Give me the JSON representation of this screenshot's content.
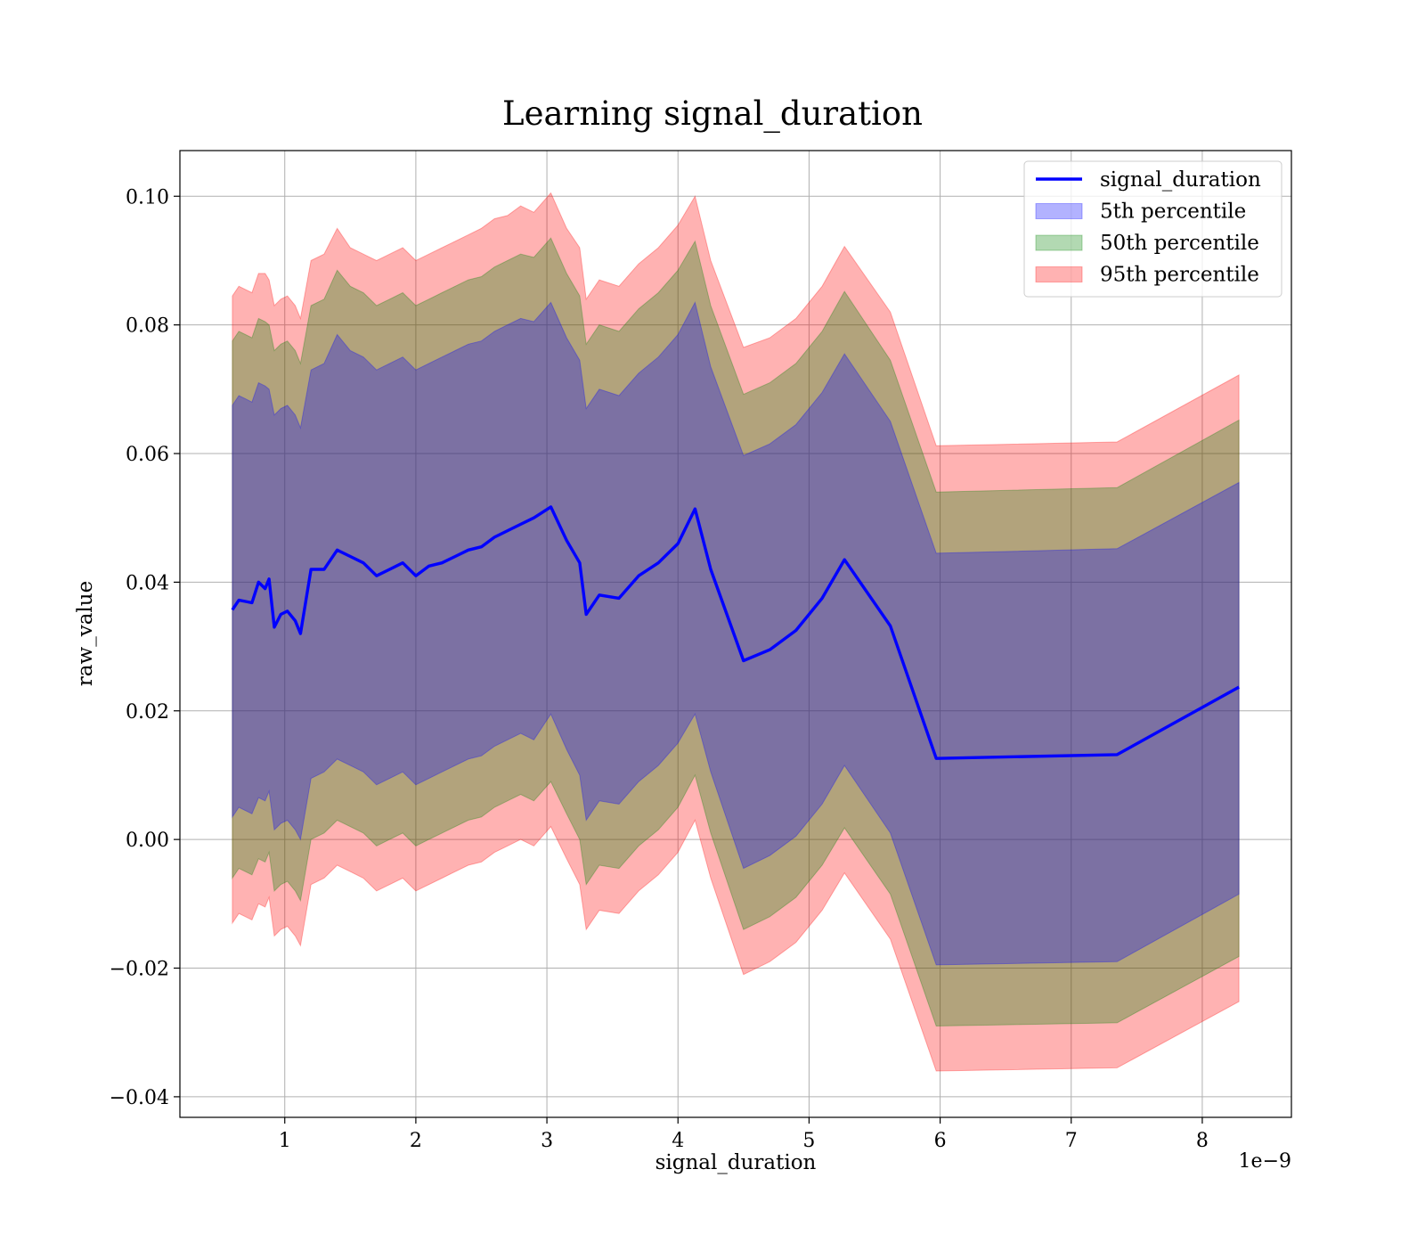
{
  "chart_data": {
    "type": "area",
    "title": "Learning signal_duration",
    "xlabel": "signal_duration",
    "ylabel": "raw_value",
    "x_scale_label": "1e−9",
    "xlim": [
      0.2,
      8.68
    ],
    "ylim": [
      -0.0432,
      0.1071
    ],
    "x_ticks": [
      1,
      2,
      3,
      4,
      5,
      6,
      7,
      8
    ],
    "x_tick_labels": [
      "1",
      "2",
      "3",
      "4",
      "5",
      "6",
      "7",
      "8"
    ],
    "y_ticks": [
      -0.04,
      -0.02,
      0.0,
      0.02,
      0.04,
      0.06,
      0.08,
      0.1
    ],
    "y_tick_labels": [
      "−0.04",
      "−0.02",
      "0.00",
      "0.02",
      "0.04",
      "0.06",
      "0.08",
      "0.10"
    ],
    "grid": true,
    "legend_position": "top-right",
    "legend": [
      {
        "label": "signal_duration",
        "kind": "line",
        "color": "#0000ff"
      },
      {
        "label": "5th percentile",
        "kind": "patch",
        "color": "#0000ff",
        "alpha": 0.3
      },
      {
        "label": "50th percentile",
        "kind": "patch",
        "color": "#008000",
        "alpha": 0.3
      },
      {
        "label": "95th percentile",
        "kind": "patch",
        "color": "#ff0000",
        "alpha": 0.3
      }
    ],
    "x": [
      0.6,
      0.65,
      0.7,
      0.75,
      0.8,
      0.85,
      0.88,
      0.92,
      0.97,
      1.02,
      1.08,
      1.12,
      1.2,
      1.3,
      1.4,
      1.5,
      1.6,
      1.7,
      1.8,
      1.9,
      2.0,
      2.1,
      2.2,
      2.3,
      2.4,
      2.5,
      2.6,
      2.7,
      2.8,
      2.9,
      3.03,
      3.15,
      3.25,
      3.3,
      3.4,
      3.55,
      3.7,
      3.85,
      4.0,
      4.13,
      4.25,
      4.5,
      4.7,
      4.9,
      5.1,
      5.27,
      5.62,
      5.97,
      7.35,
      8.28
    ],
    "series": [
      {
        "name": "signal_duration",
        "role": "line",
        "color": "#0000ff",
        "values": [
          0.0357,
          0.0372,
          0.037,
          0.0368,
          0.04,
          0.039,
          0.0405,
          0.033,
          0.035,
          0.0355,
          0.034,
          0.032,
          0.042,
          0.042,
          0.045,
          0.044,
          0.043,
          0.041,
          0.042,
          0.043,
          0.041,
          0.0425,
          0.043,
          0.044,
          0.045,
          0.0455,
          0.047,
          0.048,
          0.049,
          0.05,
          0.0517,
          0.0465,
          0.043,
          0.035,
          0.038,
          0.0375,
          0.041,
          0.043,
          0.046,
          0.0514,
          0.042,
          0.0278,
          0.0295,
          0.0325,
          0.0375,
          0.0435,
          0.0332,
          0.0126,
          0.0132,
          0.0237
        ]
      }
    ],
    "bands": [
      {
        "name": "95th percentile",
        "color": "#ff0000",
        "alpha": 0.3,
        "upper": [
          0.0845,
          0.086,
          0.0855,
          0.085,
          0.088,
          0.088,
          0.087,
          0.083,
          0.084,
          0.0845,
          0.083,
          0.081,
          0.09,
          0.091,
          0.095,
          0.092,
          0.091,
          0.09,
          0.091,
          0.092,
          0.09,
          0.091,
          0.092,
          0.093,
          0.094,
          0.095,
          0.0965,
          0.097,
          0.0985,
          0.0975,
          0.1005,
          0.095,
          0.092,
          0.084,
          0.087,
          0.086,
          0.0895,
          0.092,
          0.0955,
          0.1,
          0.09,
          0.0765,
          0.078,
          0.081,
          0.086,
          0.0922,
          0.082,
          0.0612,
          0.0618,
          0.0722
        ],
        "lower": [
          -0.013,
          -0.0115,
          -0.012,
          -0.0125,
          -0.01,
          -0.0105,
          -0.009,
          -0.015,
          -0.014,
          -0.0135,
          -0.015,
          -0.0165,
          -0.007,
          -0.006,
          -0.004,
          -0.005,
          -0.006,
          -0.008,
          -0.007,
          -0.006,
          -0.008,
          -0.007,
          -0.006,
          -0.005,
          -0.004,
          -0.0035,
          -0.002,
          -0.001,
          0.0,
          -0.001,
          0.002,
          -0.003,
          -0.007,
          -0.014,
          -0.011,
          -0.0115,
          -0.008,
          -0.0055,
          -0.002,
          0.003,
          -0.006,
          -0.021,
          -0.019,
          -0.016,
          -0.011,
          -0.0052,
          -0.0155,
          -0.036,
          -0.0355,
          -0.0252
        ]
      },
      {
        "name": "50th percentile",
        "color": "#008000",
        "alpha": 0.3,
        "upper": [
          0.0775,
          0.079,
          0.0785,
          0.078,
          0.081,
          0.0805,
          0.08,
          0.076,
          0.077,
          0.0775,
          0.076,
          0.074,
          0.083,
          0.084,
          0.0885,
          0.086,
          0.085,
          0.083,
          0.084,
          0.085,
          0.083,
          0.084,
          0.085,
          0.086,
          0.087,
          0.0875,
          0.089,
          0.09,
          0.091,
          0.0905,
          0.0935,
          0.088,
          0.0845,
          0.077,
          0.08,
          0.079,
          0.0825,
          0.085,
          0.0885,
          0.093,
          0.083,
          0.0692,
          0.071,
          0.074,
          0.079,
          0.0852,
          0.0745,
          0.054,
          0.0547,
          0.0652
        ],
        "lower": [
          -0.006,
          -0.0045,
          -0.005,
          -0.0055,
          -0.003,
          -0.0035,
          -0.002,
          -0.008,
          -0.007,
          -0.0065,
          -0.008,
          -0.0095,
          0.0,
          0.001,
          0.003,
          0.002,
          0.001,
          -0.001,
          0.0,
          0.001,
          -0.001,
          0.0,
          0.001,
          0.002,
          0.003,
          0.0035,
          0.005,
          0.006,
          0.007,
          0.006,
          0.009,
          0.004,
          0.0,
          -0.007,
          -0.004,
          -0.0045,
          -0.001,
          0.0015,
          0.005,
          0.01,
          0.001,
          -0.014,
          -0.012,
          -0.009,
          -0.004,
          0.0018,
          -0.0085,
          -0.029,
          -0.0285,
          -0.0182
        ]
      },
      {
        "name": "5th percentile",
        "color": "#0000ff",
        "alpha": 0.3,
        "upper": [
          0.0675,
          0.069,
          0.0685,
          0.068,
          0.071,
          0.0705,
          0.07,
          0.066,
          0.067,
          0.0675,
          0.066,
          0.064,
          0.073,
          0.074,
          0.0785,
          0.076,
          0.075,
          0.073,
          0.074,
          0.075,
          0.073,
          0.074,
          0.075,
          0.076,
          0.077,
          0.0775,
          0.079,
          0.08,
          0.081,
          0.0805,
          0.0835,
          0.078,
          0.0745,
          0.067,
          0.07,
          0.069,
          0.0725,
          0.075,
          0.0785,
          0.0835,
          0.0735,
          0.0597,
          0.0615,
          0.0645,
          0.0695,
          0.0755,
          0.065,
          0.0445,
          0.0452,
          0.0555
        ],
        "lower": [
          0.0035,
          0.005,
          0.0045,
          0.004,
          0.0065,
          0.006,
          0.0075,
          0.0015,
          0.0025,
          0.003,
          0.0015,
          0.0,
          0.0095,
          0.0105,
          0.0125,
          0.0115,
          0.0105,
          0.0085,
          0.0095,
          0.0105,
          0.0085,
          0.0095,
          0.0105,
          0.0115,
          0.0125,
          0.013,
          0.0145,
          0.0155,
          0.0165,
          0.0155,
          0.0195,
          0.014,
          0.01,
          0.003,
          0.006,
          0.0055,
          0.009,
          0.0115,
          0.015,
          0.0195,
          0.0105,
          -0.0045,
          -0.0025,
          0.0005,
          0.0055,
          0.0115,
          0.001,
          -0.0195,
          -0.019,
          -0.0085
        ]
      }
    ]
  }
}
